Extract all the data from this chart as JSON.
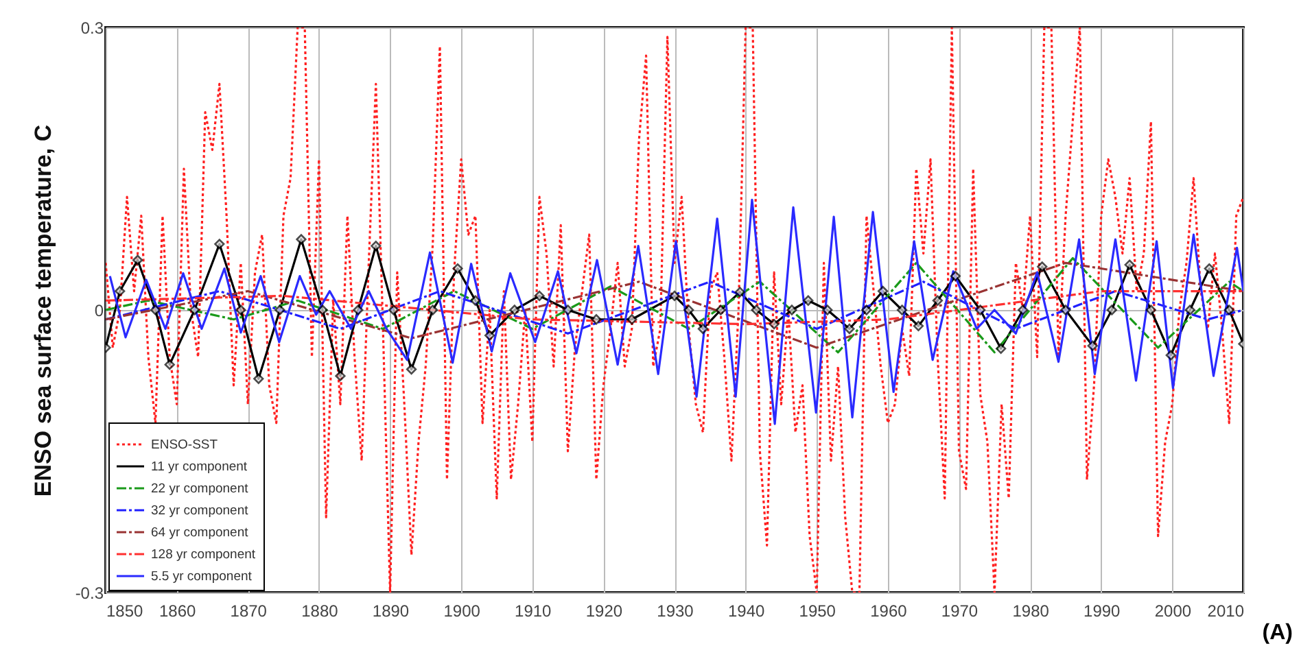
{
  "chart_data": {
    "type": "line",
    "ylabel": "ENSO sea surface temperature, C",
    "xlim": [
      1850,
      2010
    ],
    "xticks": [
      1850,
      1860,
      1870,
      1880,
      1890,
      1900,
      1910,
      1920,
      1930,
      1940,
      1950,
      1960,
      1970,
      1980,
      1990,
      2000,
      2010
    ],
    "ylim": [
      -0.3,
      0.3
    ],
    "yticks": [
      -0.3,
      0,
      0.3
    ],
    "grid": true,
    "legend": "bottom left",
    "annotations": [
      "(A)"
    ],
    "series": [
      {
        "name": "ENSO-SST",
        "color": "#ff2020",
        "line_style": "dotted",
        "marker": "none",
        "x": [
          1850,
          1851,
          1852,
          1853,
          1854,
          1855,
          1856,
          1857,
          1858,
          1859,
          1860,
          1861,
          1862,
          1863,
          1864,
          1865,
          1866,
          1867,
          1868,
          1869,
          1870,
          1871,
          1872,
          1873,
          1874,
          1875,
          1876,
          1877,
          1878,
          1879,
          1880,
          1881,
          1882,
          1883,
          1884,
          1885,
          1886,
          1887,
          1888,
          1889,
          1890,
          1891,
          1892,
          1893,
          1894,
          1895,
          1896,
          1897,
          1898,
          1899,
          1900,
          1901,
          1902,
          1903,
          1904,
          1905,
          1906,
          1907,
          1908,
          1909,
          1910,
          1911,
          1912,
          1913,
          1914,
          1915,
          1916,
          1917,
          1918,
          1919,
          1920,
          1921,
          1922,
          1923,
          1924,
          1925,
          1926,
          1927,
          1928,
          1929,
          1930,
          1931,
          1932,
          1933,
          1934,
          1935,
          1936,
          1937,
          1938,
          1939,
          1940,
          1941,
          1942,
          1943,
          1944,
          1945,
          1946,
          1947,
          1948,
          1949,
          1950,
          1951,
          1952,
          1953,
          1954,
          1955,
          1956,
          1957,
          1958,
          1959,
          1960,
          1961,
          1962,
          1963,
          1964,
          1965,
          1966,
          1967,
          1968,
          1969,
          1970,
          1971,
          1972,
          1973,
          1974,
          1975,
          1976,
          1977,
          1978,
          1979,
          1980,
          1981,
          1982,
          1983,
          1984,
          1985,
          1986,
          1987,
          1988,
          1989,
          1990,
          1991,
          1992,
          1993,
          1994,
          1995,
          1996,
          1997,
          1998,
          1999,
          2000,
          2001,
          2002,
          2003,
          2004,
          2005,
          2006,
          2007,
          2008,
          2009,
          2010
        ],
        "values": [
          0.05,
          -0.04,
          0.0,
          0.12,
          0.02,
          0.1,
          -0.05,
          -0.12,
          0.1,
          -0.05,
          -0.1,
          0.15,
          0.0,
          -0.05,
          0.21,
          0.17,
          0.24,
          0.1,
          -0.08,
          0.05,
          -0.1,
          0.04,
          0.08,
          -0.08,
          -0.12,
          0.1,
          0.14,
          0.3,
          0.3,
          -0.05,
          0.16,
          -0.22,
          0.01,
          -0.1,
          0.1,
          -0.05,
          -0.16,
          0.05,
          0.24,
          -0.02,
          -0.3,
          0.04,
          -0.1,
          -0.26,
          -0.14,
          -0.06,
          0.07,
          0.28,
          -0.18,
          0.04,
          0.16,
          0.08,
          0.1,
          -0.12,
          0.0,
          -0.2,
          0.02,
          -0.18,
          -0.1,
          0.0,
          -0.14,
          0.12,
          0.06,
          -0.06,
          0.09,
          -0.15,
          -0.04,
          0.02,
          0.08,
          -0.18,
          -0.08,
          -0.02,
          0.05,
          -0.06,
          -0.02,
          0.18,
          0.27,
          -0.06,
          -0.02,
          0.29,
          0.05,
          0.12,
          -0.02,
          -0.1,
          -0.13,
          0.02,
          0.04,
          -0.05,
          -0.16,
          0.0,
          0.3,
          0.3,
          -0.15,
          -0.25,
          0.04,
          -0.1,
          0.0,
          -0.13,
          -0.08,
          -0.24,
          -0.3,
          0.05,
          -0.16,
          -0.06,
          -0.22,
          -0.3,
          -0.3,
          0.1,
          0.02,
          -0.06,
          -0.12,
          -0.1,
          -0.02,
          -0.07,
          0.15,
          0.06,
          0.16,
          -0.05,
          -0.2,
          0.3,
          -0.15,
          -0.19,
          0.15,
          -0.09,
          -0.14,
          -0.3,
          -0.1,
          -0.2,
          0.05,
          0.0,
          0.1,
          -0.05,
          0.3,
          0.3,
          -0.05,
          0.1,
          0.2,
          0.3,
          -0.18,
          -0.08,
          0.1,
          0.16,
          0.12,
          0.06,
          0.14,
          0.02,
          0.06,
          0.2,
          -0.24,
          -0.14,
          -0.1,
          0.0,
          0.05,
          0.14,
          0.02,
          -0.02,
          0.06,
          -0.02,
          -0.12,
          0.1,
          0.12
        ]
      },
      {
        "name": "11 yr component",
        "color": "#000000",
        "line_style": "solid",
        "marker": "diamond",
        "x": [
          1850,
          1852,
          1854.5,
          1857,
          1859,
          1862.5,
          1866,
          1869,
          1871.5,
          1874.5,
          1877.5,
          1880.5,
          1883,
          1885.5,
          1888,
          1890.5,
          1893,
          1896,
          1899.5,
          1902,
          1904,
          1907.5,
          1911,
          1915,
          1919,
          1924,
          1930,
          1932,
          1934,
          1936.5,
          1939.2,
          1941.5,
          1944,
          1946.5,
          1948.8,
          1951.5,
          1954.6,
          1957,
          1959.3,
          1962,
          1964.3,
          1967,
          1969.5,
          1973,
          1975.9,
          1979,
          1981.7,
          1985,
          1988.8,
          1991.5,
          1994,
          1997,
          1999.8,
          2002.5,
          2005.2,
          2008,
          2010
        ],
        "values": [
          -0.04,
          0.02,
          0.053,
          0.0,
          -0.058,
          0.0,
          0.07,
          0.0,
          -0.073,
          0.0,
          0.075,
          0.0,
          -0.07,
          0.0,
          0.068,
          0.0,
          -0.063,
          0.0,
          0.044,
          0.01,
          -0.027,
          0.0,
          0.015,
          0.0,
          -0.01,
          -0.01,
          0.015,
          0.0,
          -0.02,
          0.0,
          0.019,
          0.0,
          -0.015,
          0.0,
          0.01,
          0.0,
          -0.02,
          0.0,
          0.02,
          0.0,
          -0.017,
          0.01,
          0.036,
          0.0,
          -0.041,
          0.0,
          0.046,
          0.0,
          -0.038,
          0.0,
          0.048,
          0.0,
          -0.048,
          0.0,
          0.044,
          0.0,
          -0.036
        ]
      },
      {
        "name": "22 yr component",
        "color": "#1a9a1a",
        "line_style": "dashed",
        "marker": "none",
        "x": [
          1850,
          1856,
          1868,
          1877,
          1889,
          1899,
          1910,
          1921,
          1932,
          1942,
          1953,
          1964,
          1975,
          1986,
          1998,
          2008,
          2010
        ],
        "values": [
          0.0,
          0.01,
          -0.01,
          0.01,
          -0.02,
          0.02,
          -0.02,
          0.025,
          -0.02,
          0.03,
          -0.045,
          0.05,
          -0.045,
          0.055,
          -0.04,
          0.03,
          0.02
        ]
      },
      {
        "name": "32 yr component",
        "color": "#2020ff",
        "line_style": "dashed",
        "marker": "none",
        "x": [
          1850,
          1866,
          1883,
          1897,
          1915,
          1935,
          1950,
          1965,
          1978,
          1992,
          2005,
          2010
        ],
        "values": [
          -0.01,
          0.02,
          -0.02,
          0.02,
          -0.025,
          0.03,
          -0.02,
          0.03,
          -0.02,
          0.02,
          -0.01,
          0.0
        ]
      },
      {
        "name": "64 yr component",
        "color": "#993333",
        "line_style": "dashed",
        "marker": "none",
        "x": [
          1850,
          1870,
          1893,
          1925,
          1950,
          1985,
          2010
        ],
        "values": [
          -0.01,
          0.02,
          -0.03,
          0.03,
          -0.04,
          0.05,
          0.02
        ]
      },
      {
        "name": "128 yr component",
        "color": "#ff3030",
        "line_style": "dashed",
        "marker": "none",
        "x": [
          1850,
          1875,
          1910,
          1940,
          1960,
          1990,
          2010
        ],
        "values": [
          0.01,
          0.015,
          -0.01,
          -0.015,
          -0.01,
          0.02,
          0.02
        ]
      },
      {
        "name": "5.5 yr component",
        "color": "#2a2aff",
        "line_style": "solid",
        "marker": "none",
        "x": [
          1850.6,
          1852.8,
          1855.7,
          1858.4,
          1860.9,
          1863.5,
          1866.7,
          1869,
          1871.8,
          1874.4,
          1877.3,
          1879.6,
          1881.5,
          1884.5,
          1887,
          1889.5,
          1892.4,
          1895.6,
          1898.8,
          1901.4,
          1904.3,
          1906.9,
          1910.4,
          1913.6,
          1916.2,
          1919.1,
          1922,
          1924.9,
          1927.7,
          1930.2,
          1933.1,
          1936,
          1938.6,
          1940.9,
          1944.1,
          1946.7,
          1949.9,
          1952.4,
          1955,
          1957.9,
          1960.8,
          1963.7,
          1966.3,
          1969.2,
          1972.5,
          1975,
          1978,
          1981,
          1984,
          1986.9,
          1989.1,
          1992,
          1994.9,
          1997.8,
          2000.1,
          2003,
          2005.8,
          2009.1,
          2010
        ],
        "values": [
          0.036,
          -0.029,
          0.032,
          -0.02,
          0.039,
          -0.02,
          0.044,
          -0.024,
          0.036,
          -0.034,
          0.036,
          -0.005,
          0.02,
          -0.02,
          0.02,
          -0.02,
          -0.053,
          0.061,
          -0.056,
          0.049,
          -0.044,
          0.039,
          -0.034,
          0.041,
          -0.046,
          0.053,
          -0.058,
          0.068,
          -0.068,
          0.073,
          -0.092,
          0.097,
          -0.092,
          0.117,
          -0.121,
          0.109,
          -0.109,
          0.099,
          -0.114,
          0.104,
          -0.087,
          0.073,
          -0.053,
          0.041,
          -0.02,
          0.0,
          -0.025,
          0.04,
          -0.055,
          0.075,
          -0.068,
          0.075,
          -0.075,
          0.073,
          -0.083,
          0.08,
          -0.07,
          0.066,
          0.02
        ]
      }
    ]
  }
}
